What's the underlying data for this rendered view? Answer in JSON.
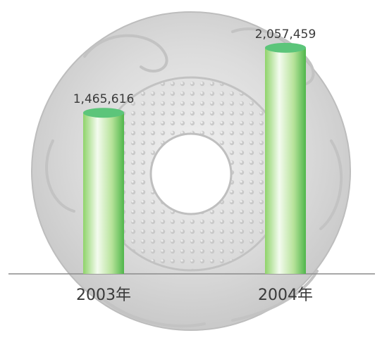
{
  "chart_data": {
    "type": "bar",
    "categories": [
      "2003年",
      "2004年"
    ],
    "values": [
      1465616,
      2057459
    ],
    "value_labels": [
      "1,465,616",
      "2,057,459"
    ],
    "title": "",
    "xlabel": "",
    "ylabel": "",
    "ylim": [
      0,
      2300000
    ],
    "grid": false,
    "legend": "none"
  },
  "colors": {
    "bar_light": "#f4fbef",
    "bar_mid": "#a8dd86",
    "bar_dark": "#4fb64b",
    "bar_top": "#5cc57a",
    "baseline": "#8c8c8c",
    "background_disc": "#d9d9d9"
  },
  "background": {
    "image": "jade-bi-disc"
  }
}
